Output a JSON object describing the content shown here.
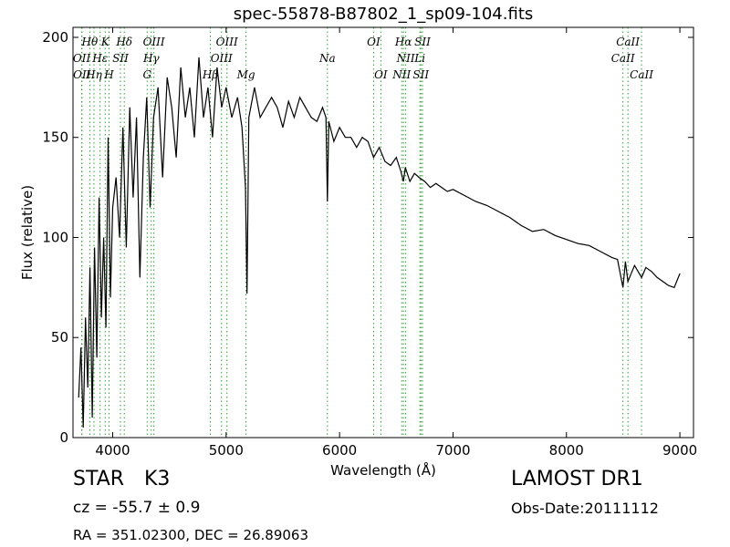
{
  "page": {
    "object_class": "STAR",
    "object_subclass": "K3",
    "redshift_text": "cz = -55.7 ± 0.9",
    "coords_text": "RA = 351.02300, DEC = 26.89063",
    "survey": "LAMOST DR1",
    "obs_date": "Obs-Date:20111112"
  },
  "colors": {
    "spectrum": "#000000",
    "lines": "#2ca02c",
    "axes": "#000000"
  },
  "chart_data": {
    "type": "line",
    "title": "spec-55878-B87802_1_sp09-104.fits",
    "xlabel": "Wavelength (Å)",
    "ylabel": "Flux (relative)",
    "xlim": [
      3650,
      9120
    ],
    "ylim": [
      0,
      205
    ],
    "xticks": [
      4000,
      5000,
      6000,
      7000,
      8000,
      9000
    ],
    "yticks": [
      0,
      50,
      100,
      150,
      200
    ],
    "grid": false,
    "series": [
      {
        "x": [
          3700,
          3720,
          3740,
          3760,
          3780,
          3800,
          3820,
          3840,
          3860,
          3880,
          3900,
          3920,
          3940,
          3960,
          3980,
          4000,
          4030,
          4060,
          4090,
          4120,
          4150,
          4180,
          4210,
          4240,
          4270,
          4300,
          4330,
          4360,
          4400,
          4440,
          4480,
          4520,
          4560,
          4600,
          4640,
          4680,
          4720,
          4760,
          4800,
          4840,
          4880,
          4920,
          4960,
          5000,
          5050,
          5100,
          5140,
          5170,
          5184,
          5200,
          5250,
          5300,
          5350,
          5400,
          5450,
          5500,
          5550,
          5600,
          5650,
          5700,
          5750,
          5800,
          5850,
          5880,
          5893,
          5905,
          5950,
          6000,
          6050,
          6100,
          6150,
          6200,
          6250,
          6300,
          6350,
          6400,
          6450,
          6500,
          6540,
          6563,
          6580,
          6620,
          6660,
          6700,
          6750,
          6800,
          6850,
          6900,
          6950,
          7000,
          7100,
          7200,
          7300,
          7400,
          7500,
          7600,
          7700,
          7800,
          7900,
          8000,
          8100,
          8200,
          8300,
          8400,
          8450,
          8498,
          8520,
          8542,
          8600,
          8662,
          8700,
          8750,
          8800,
          8850,
          8900,
          8950,
          9000
        ],
        "y": [
          20,
          45,
          5,
          60,
          25,
          85,
          10,
          95,
          40,
          120,
          60,
          100,
          55,
          150,
          70,
          115,
          130,
          100,
          155,
          95,
          165,
          120,
          160,
          80,
          140,
          170,
          115,
          160,
          175,
          130,
          180,
          165,
          140,
          185,
          160,
          175,
          150,
          190,
          160,
          175,
          150,
          185,
          165,
          175,
          160,
          170,
          155,
          125,
          72,
          160,
          175,
          160,
          165,
          170,
          165,
          155,
          168,
          160,
          170,
          165,
          160,
          158,
          165,
          160,
          118,
          158,
          148,
          155,
          150,
          150,
          145,
          150,
          148,
          140,
          145,
          138,
          136,
          140,
          133,
          128,
          135,
          128,
          132,
          130,
          128,
          125,
          127,
          125,
          123,
          124,
          121,
          118,
          116,
          113,
          110,
          106,
          103,
          104,
          101,
          99,
          97,
          96,
          93,
          90,
          89,
          75,
          88,
          78,
          86,
          80,
          85,
          83,
          80,
          78,
          76,
          75,
          82
        ]
      }
    ],
    "line_markers": [
      {
        "label": "Hθ",
        "x": 3798,
        "row": 1
      },
      {
        "label": "OII",
        "x": 3727,
        "row": 2
      },
      {
        "label": "OII",
        "x": 3729,
        "row": 3
      },
      {
        "label": "Hη",
        "x": 3835,
        "row": 3
      },
      {
        "label": "Hε",
        "x": 3889,
        "row": 2
      },
      {
        "label": "K",
        "x": 3934,
        "row": 1
      },
      {
        "label": "SII",
        "x": 4068,
        "row": 2
      },
      {
        "label": "H",
        "x": 3968,
        "row": 3
      },
      {
        "label": "Hδ",
        "x": 4102,
        "row": 1
      },
      {
        "label": "OIII",
        "x": 4363,
        "row": 1
      },
      {
        "label": "Hγ",
        "x": 4340,
        "row": 2
      },
      {
        "label": "G",
        "x": 4304,
        "row": 3
      },
      {
        "label": "OIII",
        "x": 5007,
        "row": 1
      },
      {
        "label": "OIII",
        "x": 4959,
        "row": 2
      },
      {
        "label": "Hβ",
        "x": 4861,
        "row": 3
      },
      {
        "label": "Mg",
        "x": 5175,
        "row": 3
      },
      {
        "label": "Na",
        "x": 5893,
        "row": 2
      },
      {
        "label": "OI",
        "x": 6300,
        "row": 1
      },
      {
        "label": "OI",
        "x": 6364,
        "row": 3
      },
      {
        "label": "Hα",
        "x": 6563,
        "row": 1
      },
      {
        "label": "NII",
        "x": 6583,
        "row": 2
      },
      {
        "label": "NII",
        "x": 6548,
        "row": 3
      },
      {
        "label": "SII",
        "x": 6731,
        "row": 1
      },
      {
        "label": "Li",
        "x": 6708,
        "row": 2
      },
      {
        "label": "SII",
        "x": 6717,
        "row": 3
      },
      {
        "label": "CaII",
        "x": 8542,
        "row": 1
      },
      {
        "label": "CaII",
        "x": 8498,
        "row": 2
      },
      {
        "label": "CaII",
        "x": 8662,
        "row": 3
      }
    ]
  }
}
